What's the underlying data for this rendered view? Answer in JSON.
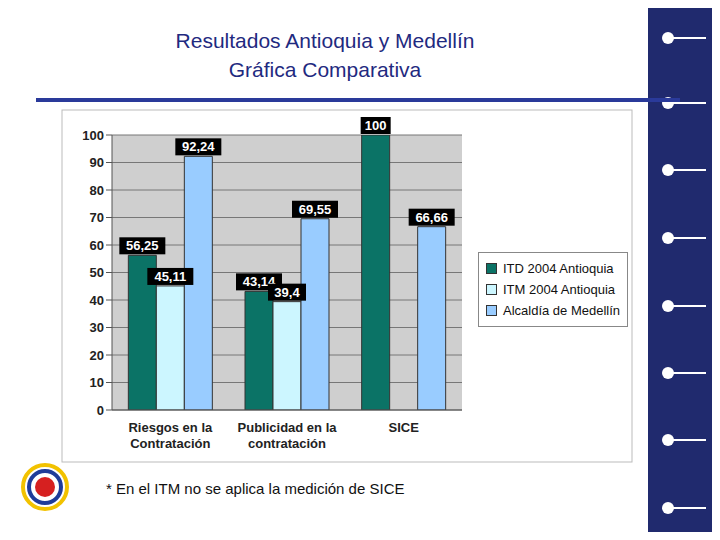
{
  "chart_data": {
    "type": "bar",
    "title": "Resultados Antioquia y Medellín",
    "subtitle": "Gráfica Comparativa",
    "categories": [
      "Riesgos en la Contratación",
      "Publicidad en la contratación",
      "SICE"
    ],
    "series": [
      {
        "name": "ITD 2004 Antioquia",
        "color": "#0b7366",
        "values": [
          56.25,
          43.14,
          100
        ],
        "value_labels": [
          "56,25",
          "43,14",
          "100"
        ]
      },
      {
        "name": "ITM 2004 Antioquia",
        "color": "#ccf6ff",
        "values": [
          45.11,
          39.4,
          null
        ],
        "value_labels": [
          "45,11",
          "39,4",
          null
        ]
      },
      {
        "name": "Alcaldía de Medellín",
        "color": "#99ccff",
        "values": [
          92.24,
          69.55,
          66.66
        ],
        "value_labels": [
          "92,24",
          "69,55",
          "66,66"
        ]
      }
    ],
    "ylim": [
      0,
      100
    ],
    "yticks": [
      0,
      10,
      20,
      30,
      40,
      50,
      60,
      70,
      80,
      90,
      100
    ],
    "grid": true,
    "data_labels": true,
    "legend": "right",
    "annotations": [
      "* En el ITM no se aplica la medición de SICE"
    ]
  }
}
